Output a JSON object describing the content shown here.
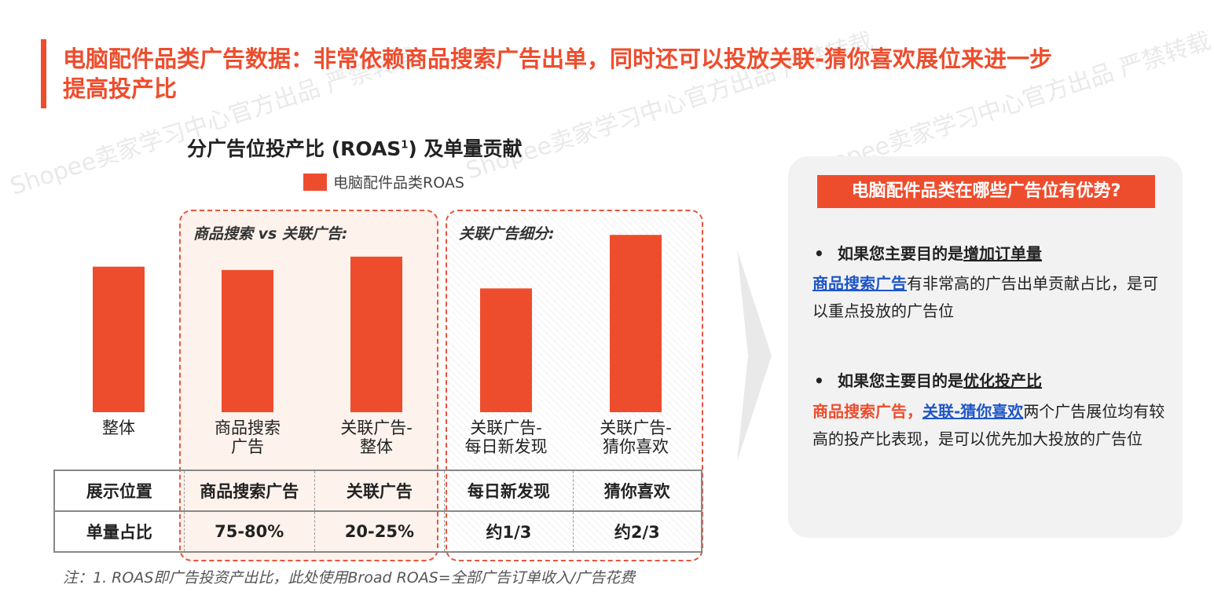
{
  "title": "电脑配件品类广告数据：非常依赖商品搜索广告出单，同时还可以投放关联-猜你喜欢展位来进一步提高投产比",
  "chart_title_main": "分广告位投产比 (ROAS",
  "chart_title_sup": "1",
  "chart_title_end": ") 及单量贡献",
  "legend_label": "电脑配件品类ROAS",
  "group_labels": [
    "商品搜索 vs 关联广告:",
    "关联广告细分:"
  ],
  "table": {
    "row1": [
      "展示位置",
      "商品搜索广告",
      "关联广告",
      "每日新发现",
      "猜你喜欢"
    ],
    "row2": [
      "单量占比",
      "75-80%",
      "20-25%",
      "约1/3",
      "约2/3"
    ]
  },
  "panel": {
    "title": "电脑配件品类在哪些广告位有优势?",
    "bullet_dot": "•",
    "b1_head_pre": "如果您主要目的是",
    "b1_head_key": "增加订单量",
    "b1_hl": "商品搜索广告",
    "b1_rest": "有非常高的广告出单贡献占比，是可以重点投放的广告位",
    "b2_head_pre": "如果您主要目的是",
    "b2_head_key": "优化投产比",
    "b2_hl1": "商品搜索广告，",
    "b2_hl2": "关联-猜你喜欢",
    "b2_rest": "两个广告展位均有较高的投产比表现，是可以优先加大投放的广告位"
  },
  "footnote": "注：1. ROAS即广告投资产出比，此处使用Broad ROAS=全部广告订单收入/广告花费",
  "watermark": "Shopee卖家学习中心官方出品 严禁转载",
  "colors": {
    "accent": "#ee4d2d",
    "link": "#1e56c8"
  },
  "chart_data": {
    "type": "bar",
    "categories": [
      "整体",
      "商品搜索\n广告",
      "关联广告-\n整体",
      "关联广告-\n每日新发现",
      "关联广告-\n猜你喜欢"
    ],
    "series": [
      {
        "name": "电脑配件品类ROAS",
        "values": [
          174,
          170,
          186,
          148,
          212
        ]
      }
    ],
    "ylim": [
      0,
      230
    ],
    "ylabel": "",
    "xlabel": "",
    "grid": false,
    "legend": "top"
  }
}
